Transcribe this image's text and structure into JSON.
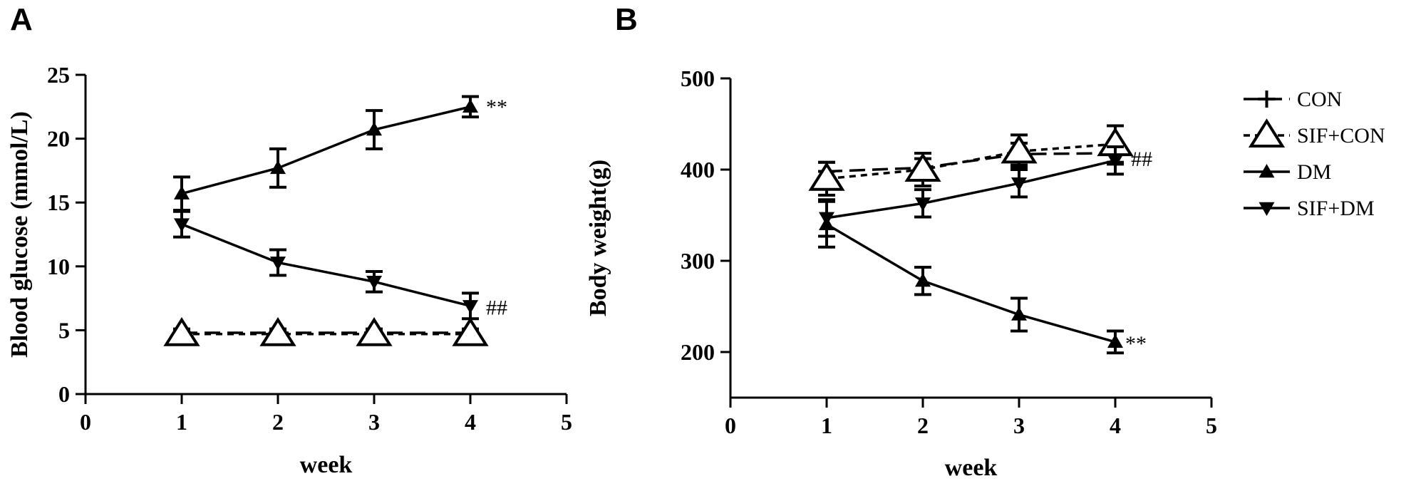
{
  "chart_data": [
    {
      "panel": "A",
      "type": "line",
      "title": "",
      "xlabel": "week",
      "ylabel": "Blood glucose (mmol/L)",
      "xlim": [
        0,
        5
      ],
      "ylim": [
        0,
        25
      ],
      "xticks": [
        0,
        1,
        2,
        3,
        4,
        5
      ],
      "yticks": [
        0,
        5,
        10,
        15,
        20,
        25
      ],
      "x": [
        1,
        2,
        3,
        4
      ],
      "series": [
        {
          "name": "CON",
          "marker": "plus",
          "dash": "long",
          "values": [
            4.8,
            4.8,
            4.8,
            4.8
          ],
          "errors": [
            0.3,
            0.3,
            0.3,
            0.3
          ]
        },
        {
          "name": "SIF+CON",
          "marker": "triangle-open",
          "dash": "short",
          "values": [
            4.7,
            4.7,
            4.7,
            4.7
          ],
          "errors": [
            0.3,
            0.3,
            0.3,
            0.3
          ]
        },
        {
          "name": "DM",
          "marker": "triangle-up",
          "dash": "solid",
          "values": [
            15.7,
            17.7,
            20.7,
            22.5
          ],
          "errors": [
            1.3,
            1.5,
            1.5,
            0.8
          ]
        },
        {
          "name": "SIF+DM",
          "marker": "triangle-down",
          "dash": "solid",
          "values": [
            13.3,
            10.3,
            8.8,
            6.9
          ],
          "errors": [
            1.0,
            1.0,
            0.8,
            1.0
          ]
        }
      ],
      "annotations": [
        {
          "text": "**",
          "x": 4,
          "y": 22.5
        },
        {
          "text": "##",
          "x": 4,
          "y": 6.9
        }
      ],
      "grid": false,
      "legend": "none"
    },
    {
      "panel": "B",
      "type": "line",
      "title": "",
      "xlabel": "week",
      "ylabel": "Body weight(g)",
      "xlim": [
        0,
        5
      ],
      "ylim": [
        150,
        500
      ],
      "xticks": [
        0,
        1,
        2,
        3,
        4,
        5
      ],
      "yticks": [
        200,
        300,
        400,
        500
      ],
      "x": [
        1,
        2,
        3,
        4
      ],
      "series": [
        {
          "name": "CON",
          "marker": "plus",
          "dash": "long",
          "values": [
            398,
            402,
            417,
            418
          ],
          "errors": [
            10,
            10,
            12,
            12
          ]
        },
        {
          "name": "SIF+CON",
          "marker": "triangle-open",
          "dash": "short",
          "values": [
            390,
            400,
            420,
            428
          ],
          "errors": [
            18,
            18,
            18,
            20
          ]
        },
        {
          "name": "DM",
          "marker": "triangle-up",
          "dash": "solid",
          "values": [
            340,
            278,
            241,
            211
          ],
          "errors": [
            25,
            15,
            18,
            12
          ]
        },
        {
          "name": "SIF+DM",
          "marker": "triangle-down",
          "dash": "solid",
          "values": [
            347,
            363,
            385,
            410
          ],
          "errors": [
            20,
            15,
            15,
            15
          ]
        }
      ],
      "annotations": [
        {
          "text": "##",
          "x": 4,
          "y": 410
        },
        {
          "text": "**",
          "x": 4,
          "y": 211
        }
      ],
      "grid": false,
      "legend": "right"
    }
  ]
}
